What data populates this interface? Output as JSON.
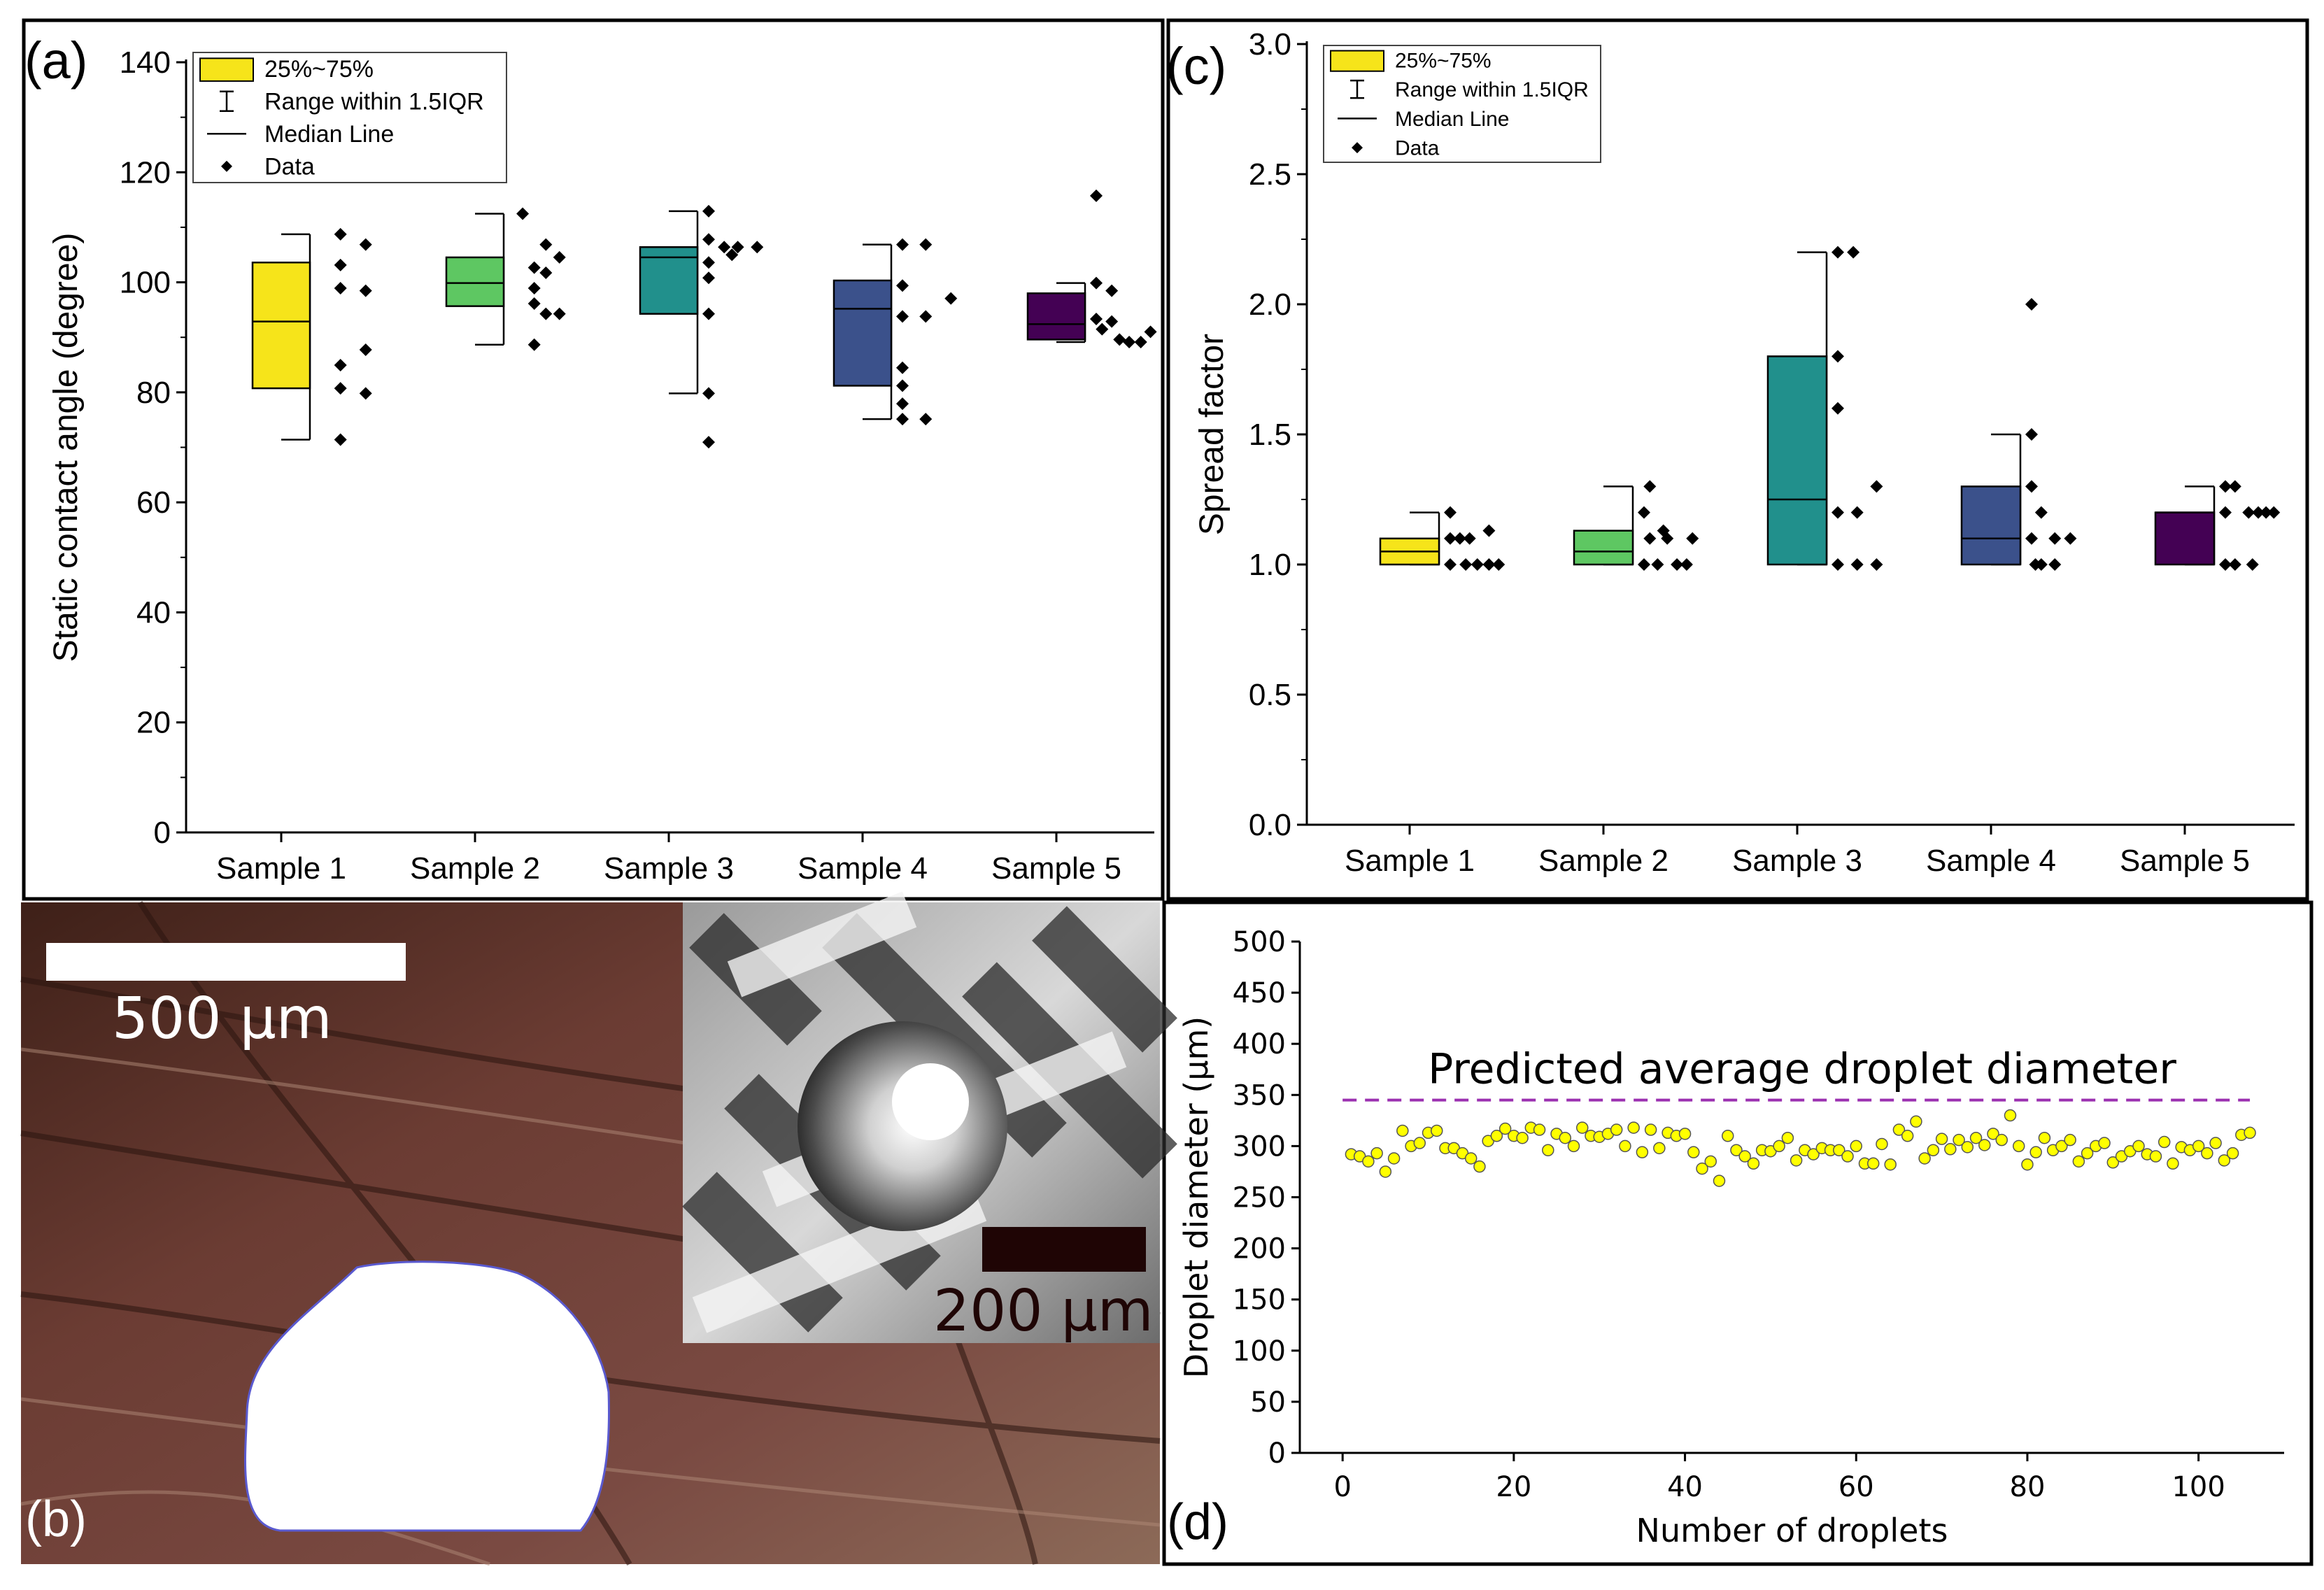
{
  "panels": {
    "a": {
      "label": "(a)"
    },
    "b": {
      "label": "(b)",
      "scalebar_main": "500 μm",
      "scalebar_inset": "200 μm"
    },
    "c": {
      "label": "(c)"
    },
    "d": {
      "label": "(d)",
      "annotation": "Predicted average droplet diameter"
    }
  },
  "legend": {
    "box": "25%~75%",
    "range": "Range within 1.5IQR",
    "median": "Median Line",
    "data": "Data"
  },
  "colors": {
    "sample1": "#f6e41a",
    "sample2": "#5ec762",
    "sample3": "#21908c",
    "sample4": "#3b518b",
    "sample5": "#440154",
    "droplet_points": "#ffff00",
    "predicted_line": "#9b30b0"
  },
  "chart_data": [
    {
      "id": "a",
      "type": "box",
      "xlabel": "",
      "ylabel": "Static contact angle (degree)",
      "ylim": [
        0,
        150
      ],
      "yticks": [
        "0",
        "20",
        "40",
        "60",
        "80",
        "100",
        "120",
        "140"
      ],
      "categories": [
        "Sample 1",
        "Sample 2",
        "Sample 3",
        "Sample 4",
        "Sample 5"
      ],
      "boxes": [
        {
          "q1": 86.5,
          "median": 99.5,
          "q3": 111,
          "whisker_low": 76.5,
          "whisker_high": 116.5
        },
        {
          "q1": 102.5,
          "median": 107,
          "q3": 112,
          "whisker_low": 95,
          "whisker_high": 120.5
        },
        {
          "q1": 101,
          "median": 112,
          "q3": 114,
          "whisker_low": 85.5,
          "whisker_high": 121
        },
        {
          "q1": 87,
          "median": 102,
          "q3": 107.5,
          "whisker_low": 80.5,
          "whisker_high": 114.5
        },
        {
          "q1": 96,
          "median": 99,
          "q3": 105,
          "whisker_low": 95.5,
          "whisker_high": 107
        }
      ],
      "points": [
        [
          {
            "o": 0.1,
            "v": 76.5
          },
          {
            "o": 0.1,
            "v": 86.5
          },
          {
            "o": 0.1,
            "v": 91
          },
          {
            "o": 0.1,
            "v": 106
          },
          {
            "o": 0.1,
            "v": 110.5
          },
          {
            "o": 0.1,
            "v": 116.5
          },
          {
            "o": 0.23,
            "v": 85.5
          },
          {
            "o": 0.23,
            "v": 94
          },
          {
            "o": 0.23,
            "v": 105.5
          },
          {
            "o": 0.23,
            "v": 114.5
          }
        ],
        [
          {
            "o": 0.1,
            "v": 95
          },
          {
            "o": 0.1,
            "v": 103
          },
          {
            "o": 0.1,
            "v": 106
          },
          {
            "o": 0.1,
            "v": 110
          },
          {
            "o": 0.16,
            "v": 101
          },
          {
            "o": 0.16,
            "v": 109
          },
          {
            "o": 0.16,
            "v": 114.5
          },
          {
            "o": 0.23,
            "v": 101
          },
          {
            "o": 0.23,
            "v": 112
          },
          {
            "o": 0.04,
            "v": 120.5
          }
        ],
        [
          {
            "o": 0.0,
            "v": 76
          },
          {
            "o": 0.0,
            "v": 85.5
          },
          {
            "o": 0.0,
            "v": 101
          },
          {
            "o": 0.0,
            "v": 108
          },
          {
            "o": 0.0,
            "v": 111
          },
          {
            "o": 0.0,
            "v": 115.5
          },
          {
            "o": 0.0,
            "v": 121
          },
          {
            "o": 0.08,
            "v": 114
          },
          {
            "o": 0.15,
            "v": 114
          },
          {
            "o": 0.25,
            "v": 114
          },
          {
            "o": 0.12,
            "v": 112.5
          }
        ],
        [
          {
            "o": 0.0,
            "v": 80.5
          },
          {
            "o": 0.0,
            "v": 83.5
          },
          {
            "o": 0.0,
            "v": 87
          },
          {
            "o": 0.0,
            "v": 90.5
          },
          {
            "o": 0.0,
            "v": 100.5
          },
          {
            "o": 0.0,
            "v": 106.5
          },
          {
            "o": 0.0,
            "v": 114.5
          },
          {
            "o": 0.12,
            "v": 80.5
          },
          {
            "o": 0.12,
            "v": 100.5
          },
          {
            "o": 0.12,
            "v": 114.5
          },
          {
            "o": 0.25,
            "v": 104
          }
        ],
        [
          {
            "o": 0.0,
            "v": 124
          },
          {
            "o": 0.0,
            "v": 107
          },
          {
            "o": 0.0,
            "v": 100
          },
          {
            "o": 0.03,
            "v": 98
          },
          {
            "o": 0.08,
            "v": 105.5
          },
          {
            "o": 0.08,
            "v": 99.5
          },
          {
            "o": 0.12,
            "v": 96
          },
          {
            "o": 0.17,
            "v": 95.5
          },
          {
            "o": 0.23,
            "v": 95.5
          },
          {
            "o": 0.28,
            "v": 97.5
          }
        ]
      ]
    },
    {
      "id": "c",
      "type": "box",
      "xlabel": "",
      "ylabel": "Spread factor",
      "ylim": [
        0,
        3
      ],
      "yticks": [
        "0.0",
        "0.5",
        "1.0",
        "1.5",
        "2.0",
        "2.5",
        "3.0"
      ],
      "categories": [
        "Sample 1",
        "Sample 2",
        "Sample 3",
        "Sample 4",
        "Sample 5"
      ],
      "boxes": [
        {
          "q1": 1.0,
          "median": 1.05,
          "q3": 1.1,
          "whisker_low": 1.0,
          "whisker_high": 1.2
        },
        {
          "q1": 1.0,
          "median": 1.05,
          "q3": 1.13,
          "whisker_low": 1.0,
          "whisker_high": 1.3
        },
        {
          "q1": 1.0,
          "median": 1.25,
          "q3": 1.8,
          "whisker_low": 1.0,
          "whisker_high": 2.2
        },
        {
          "q1": 1.0,
          "median": 1.1,
          "q3": 1.3,
          "whisker_low": 1.0,
          "whisker_high": 1.5
        },
        {
          "q1": 1.0,
          "median": 1.2,
          "q3": 1.2,
          "whisker_low": 1.0,
          "whisker_high": 1.3
        }
      ],
      "points": [
        [
          {
            "o": 0.0,
            "v": 1.2
          },
          {
            "o": 0.0,
            "v": 1.1
          },
          {
            "o": 0.0,
            "v": 1.0
          },
          {
            "o": 0.05,
            "v": 1.1
          },
          {
            "o": 0.08,
            "v": 1.0
          },
          {
            "o": 0.1,
            "v": 1.1
          },
          {
            "o": 0.14,
            "v": 1.0
          },
          {
            "o": 0.2,
            "v": 1.13
          },
          {
            "o": 0.2,
            "v": 1.0
          },
          {
            "o": 0.25,
            "v": 1.0
          }
        ],
        [
          {
            "o": 0.0,
            "v": 1.2
          },
          {
            "o": 0.0,
            "v": 1.0
          },
          {
            "o": 0.03,
            "v": 1.3
          },
          {
            "o": 0.03,
            "v": 1.1
          },
          {
            "o": 0.07,
            "v": 1.0
          },
          {
            "o": 0.1,
            "v": 1.13
          },
          {
            "o": 0.12,
            "v": 1.1
          },
          {
            "o": 0.17,
            "v": 1.0
          },
          {
            "o": 0.22,
            "v": 1.0
          },
          {
            "o": 0.25,
            "v": 1.1
          }
        ],
        [
          {
            "o": 0.0,
            "v": 2.2
          },
          {
            "o": 0.0,
            "v": 1.8
          },
          {
            "o": 0.0,
            "v": 1.6
          },
          {
            "o": 0.0,
            "v": 1.2
          },
          {
            "o": 0.0,
            "v": 1.0
          },
          {
            "o": 0.08,
            "v": 2.2
          },
          {
            "o": 0.1,
            "v": 1.2
          },
          {
            "o": 0.1,
            "v": 1.0
          },
          {
            "o": 0.2,
            "v": 1.3
          },
          {
            "o": 0.2,
            "v": 1.0
          }
        ],
        [
          {
            "o": 0.0,
            "v": 2.0
          },
          {
            "o": 0.0,
            "v": 1.5
          },
          {
            "o": 0.0,
            "v": 1.3
          },
          {
            "o": 0.0,
            "v": 1.1
          },
          {
            "o": 0.05,
            "v": 1.2
          },
          {
            "o": 0.05,
            "v": 1.0
          },
          {
            "o": 0.12,
            "v": 1.1
          },
          {
            "o": 0.12,
            "v": 1.0
          },
          {
            "o": 0.2,
            "v": 1.1
          },
          {
            "o": 0.02,
            "v": 1.0
          }
        ],
        [
          {
            "o": 0.0,
            "v": 1.3
          },
          {
            "o": 0.0,
            "v": 1.2
          },
          {
            "o": 0.0,
            "v": 1.0
          },
          {
            "o": 0.05,
            "v": 1.3
          },
          {
            "o": 0.05,
            "v": 1.0
          },
          {
            "o": 0.12,
            "v": 1.2
          },
          {
            "o": 0.14,
            "v": 1.0
          },
          {
            "o": 0.17,
            "v": 1.2
          },
          {
            "o": 0.21,
            "v": 1.2
          },
          {
            "o": 0.25,
            "v": 1.2
          }
        ]
      ]
    },
    {
      "id": "d",
      "type": "scatter",
      "xlabel": "Number of droplets",
      "ylabel": "Droplet diameter (μm)",
      "xlim": [
        -5,
        110
      ],
      "ylim": [
        0,
        500
      ],
      "xticks": [
        "0",
        "20",
        "40",
        "60",
        "80",
        "100"
      ],
      "yticks": [
        "0",
        "50",
        "100",
        "150",
        "200",
        "250",
        "300",
        "350",
        "400",
        "450",
        "500"
      ],
      "predicted_average": 345,
      "x": [
        1,
        2,
        3,
        4,
        5,
        6,
        7,
        8,
        9,
        10,
        11,
        12,
        13,
        14,
        15,
        16,
        17,
        18,
        19,
        20,
        21,
        22,
        23,
        24,
        25,
        26,
        27,
        28,
        29,
        30,
        31,
        32,
        33,
        34,
        35,
        36,
        37,
        38,
        39,
        40,
        41,
        42,
        43,
        44,
        45,
        46,
        47,
        48,
        49,
        50,
        51,
        52,
        53,
        54,
        55,
        56,
        57,
        58,
        59,
        60,
        61,
        62,
        63,
        64,
        65,
        66,
        67,
        68,
        69,
        70,
        71,
        72,
        73,
        74,
        75,
        76,
        77,
        78,
        79,
        80,
        81,
        82,
        83,
        84,
        85,
        86,
        87,
        88,
        89,
        90,
        91,
        92,
        93,
        94,
        95,
        96,
        97,
        98,
        99,
        100,
        101,
        102,
        103,
        104,
        105,
        106
      ],
      "y": [
        292,
        290,
        285,
        293,
        275,
        288,
        315,
        300,
        303,
        313,
        315,
        298,
        298,
        293,
        288,
        280,
        305,
        310,
        317,
        310,
        308,
        318,
        316,
        296,
        312,
        308,
        300,
        318,
        310,
        309,
        312,
        316,
        300,
        318,
        294,
        316,
        298,
        313,
        310,
        312,
        294,
        278,
        285,
        266,
        310,
        296,
        290,
        283,
        296,
        295,
        300,
        308,
        286,
        296,
        292,
        298,
        296,
        296,
        290,
        300,
        283,
        283,
        302,
        282,
        316,
        310,
        324,
        288,
        296,
        307,
        297,
        306,
        299,
        308,
        301,
        312,
        306,
        330,
        300,
        282,
        294,
        308,
        296,
        300,
        306,
        285,
        293,
        300,
        303,
        284,
        290,
        295,
        300,
        292,
        290,
        304,
        283,
        299,
        296,
        300,
        293,
        303,
        286,
        293,
        311,
        313
      ]
    }
  ]
}
